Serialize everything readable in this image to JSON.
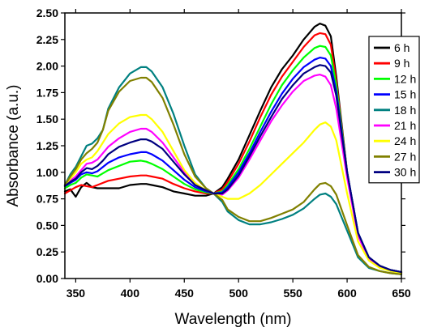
{
  "chart_data": {
    "type": "line",
    "xlabel": "Wavelength (nm)",
    "ylabel": "Absorbance (a.u.)",
    "xlim": [
      340,
      650
    ],
    "ylim": [
      0.0,
      2.5
    ],
    "x_ticks": [
      350,
      400,
      450,
      500,
      550,
      600,
      650
    ],
    "x_tick_labels": [
      "350",
      "400",
      "450",
      "500",
      "550",
      "600",
      "650"
    ],
    "y_ticks": [
      0.0,
      0.25,
      0.5,
      0.75,
      1.0,
      1.25,
      1.5,
      1.75,
      2.0,
      2.25,
      2.5
    ],
    "y_tick_labels": [
      "0.00",
      "0.25",
      "0.50",
      "0.75",
      "1.00",
      "1.25",
      "1.50",
      "1.75",
      "2.00",
      "2.25",
      "2.50"
    ],
    "grid": false,
    "legend_position": "top-right",
    "x": [
      340,
      345,
      350,
      355,
      360,
      365,
      370,
      375,
      380,
      390,
      400,
      410,
      415,
      420,
      430,
      440,
      450,
      460,
      470,
      477,
      485,
      490,
      500,
      510,
      520,
      530,
      540,
      550,
      560,
      570,
      575,
      580,
      585,
      590,
      600,
      610,
      620,
      630,
      640,
      650
    ],
    "series": [
      {
        "name": "6 h",
        "color": "#000000",
        "values": [
          0.82,
          0.84,
          0.77,
          0.86,
          0.9,
          0.86,
          0.85,
          0.85,
          0.85,
          0.85,
          0.88,
          0.89,
          0.89,
          0.88,
          0.86,
          0.82,
          0.8,
          0.78,
          0.78,
          0.8,
          0.86,
          0.94,
          1.12,
          1.35,
          1.58,
          1.8,
          1.97,
          2.1,
          2.25,
          2.37,
          2.4,
          2.38,
          2.28,
          1.9,
          1.0,
          0.42,
          0.2,
          0.12,
          0.08,
          0.06
        ]
      },
      {
        "name": "9 h",
        "color": "#ff0000",
        "values": [
          0.8,
          0.83,
          0.86,
          0.88,
          0.87,
          0.86,
          0.88,
          0.9,
          0.92,
          0.94,
          0.96,
          0.97,
          0.97,
          0.96,
          0.94,
          0.89,
          0.85,
          0.82,
          0.8,
          0.8,
          0.84,
          0.91,
          1.08,
          1.29,
          1.52,
          1.73,
          1.9,
          2.04,
          2.18,
          2.29,
          2.31,
          2.3,
          2.2,
          1.86,
          1.0,
          0.42,
          0.2,
          0.12,
          0.08,
          0.06
        ]
      },
      {
        "name": "12 h",
        "color": "#00ff00",
        "values": [
          0.85,
          0.88,
          0.9,
          0.95,
          0.98,
          0.97,
          0.96,
          0.99,
          1.02,
          1.06,
          1.1,
          1.11,
          1.1,
          1.08,
          1.03,
          0.96,
          0.89,
          0.84,
          0.81,
          0.8,
          0.82,
          0.88,
          1.03,
          1.22,
          1.43,
          1.64,
          1.82,
          1.96,
          2.08,
          2.17,
          2.19,
          2.18,
          2.1,
          1.82,
          1.0,
          0.43,
          0.2,
          0.12,
          0.08,
          0.06
        ]
      },
      {
        "name": "15 h",
        "color": "#0000ff",
        "values": [
          0.87,
          0.9,
          0.93,
          0.98,
          1.0,
          0.99,
          1.01,
          1.05,
          1.09,
          1.14,
          1.17,
          1.19,
          1.19,
          1.17,
          1.11,
          1.02,
          0.93,
          0.86,
          0.82,
          0.8,
          0.81,
          0.86,
          1.0,
          1.18,
          1.38,
          1.57,
          1.74,
          1.88,
          1.99,
          2.06,
          2.08,
          2.07,
          2.0,
          1.76,
          1.0,
          0.43,
          0.2,
          0.12,
          0.08,
          0.06
        ]
      },
      {
        "name": "18 h",
        "color": "#008080",
        "values": [
          0.88,
          0.98,
          1.05,
          1.15,
          1.25,
          1.27,
          1.32,
          1.4,
          1.6,
          1.8,
          1.93,
          1.99,
          1.99,
          1.95,
          1.8,
          1.55,
          1.25,
          0.98,
          0.85,
          0.8,
          0.72,
          0.63,
          0.55,
          0.51,
          0.51,
          0.53,
          0.56,
          0.6,
          0.66,
          0.75,
          0.79,
          0.8,
          0.77,
          0.7,
          0.45,
          0.2,
          0.1,
          0.07,
          0.05,
          0.04
        ]
      },
      {
        "name": "21 h",
        "color": "#ff00ff",
        "values": [
          0.87,
          0.92,
          0.96,
          1.02,
          1.08,
          1.09,
          1.12,
          1.18,
          1.24,
          1.32,
          1.38,
          1.41,
          1.41,
          1.38,
          1.28,
          1.14,
          1.0,
          0.89,
          0.83,
          0.8,
          0.79,
          0.83,
          0.95,
          1.12,
          1.3,
          1.48,
          1.63,
          1.76,
          1.86,
          1.91,
          1.92,
          1.9,
          1.82,
          1.6,
          0.95,
          0.4,
          0.19,
          0.11,
          0.07,
          0.05
        ]
      },
      {
        "name": "24 h",
        "color": "#ffff00",
        "values": [
          0.88,
          0.94,
          1.0,
          1.08,
          1.12,
          1.14,
          1.2,
          1.28,
          1.36,
          1.46,
          1.52,
          1.54,
          1.54,
          1.5,
          1.38,
          1.2,
          1.02,
          0.9,
          0.83,
          0.8,
          0.77,
          0.75,
          0.75,
          0.8,
          0.88,
          0.98,
          1.08,
          1.18,
          1.28,
          1.4,
          1.45,
          1.47,
          1.43,
          1.3,
          0.8,
          0.35,
          0.17,
          0.1,
          0.07,
          0.05
        ]
      },
      {
        "name": "27 h",
        "color": "#808000",
        "values": [
          0.88,
          0.96,
          1.03,
          1.12,
          1.18,
          1.22,
          1.28,
          1.4,
          1.58,
          1.76,
          1.86,
          1.89,
          1.89,
          1.85,
          1.7,
          1.45,
          1.17,
          0.96,
          0.85,
          0.8,
          0.74,
          0.65,
          0.58,
          0.54,
          0.54,
          0.57,
          0.61,
          0.65,
          0.72,
          0.84,
          0.89,
          0.9,
          0.87,
          0.79,
          0.5,
          0.22,
          0.11,
          0.07,
          0.05,
          0.04
        ]
      },
      {
        "name": "30 h",
        "color": "#000080",
        "values": [
          0.87,
          0.91,
          0.94,
          1.0,
          1.04,
          1.03,
          1.06,
          1.11,
          1.17,
          1.24,
          1.28,
          1.31,
          1.31,
          1.29,
          1.22,
          1.1,
          0.98,
          0.88,
          0.83,
          0.8,
          0.8,
          0.84,
          0.97,
          1.15,
          1.34,
          1.52,
          1.69,
          1.82,
          1.93,
          1.99,
          2.01,
          2.0,
          1.94,
          1.72,
          1.0,
          0.43,
          0.2,
          0.12,
          0.08,
          0.06
        ]
      }
    ]
  }
}
